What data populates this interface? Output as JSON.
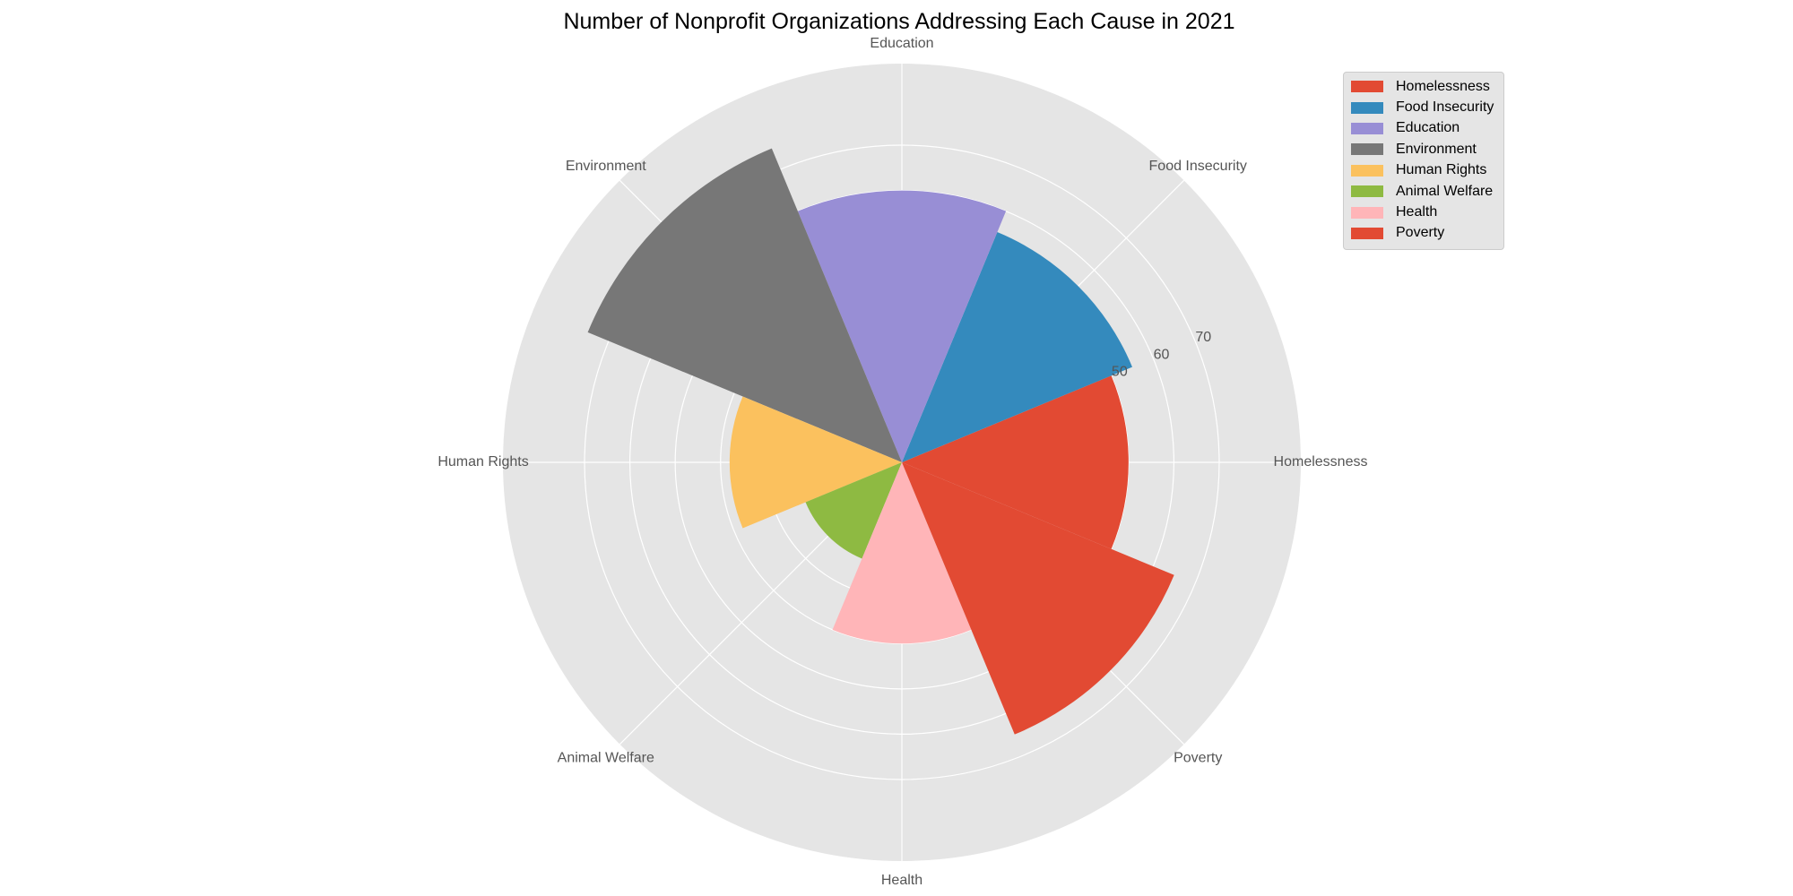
{
  "chart_data": {
    "type": "bar",
    "subtype": "polar-rose",
    "title": "Number of Nonprofit Organizations Addressing Each Cause in 2021",
    "categories": [
      "Homelessness",
      "Food Insecurity",
      "Education",
      "Environment",
      "Human Rights",
      "Animal Welfare",
      "Health",
      "Poverty"
    ],
    "values": [
      50,
      55,
      60,
      75,
      38,
      23,
      40,
      65
    ],
    "colors": [
      "#E24A33",
      "#348ABD",
      "#988ED5",
      "#777777",
      "#FBC15E",
      "#8EBA42",
      "#FFB5B8",
      "#E24A33"
    ],
    "radial_ticks": [
      10,
      20,
      30,
      40,
      50,
      60,
      70
    ],
    "radial_tick_labels_shown": [
      "50",
      "60",
      "70"
    ],
    "rlim": [
      0,
      88
    ],
    "grid": true,
    "legend_position": "upper-right",
    "legend": [
      "Homelessness",
      "Food Insecurity",
      "Education",
      "Environment",
      "Human Rights",
      "Animal Welfare",
      "Health",
      "Poverty"
    ]
  }
}
